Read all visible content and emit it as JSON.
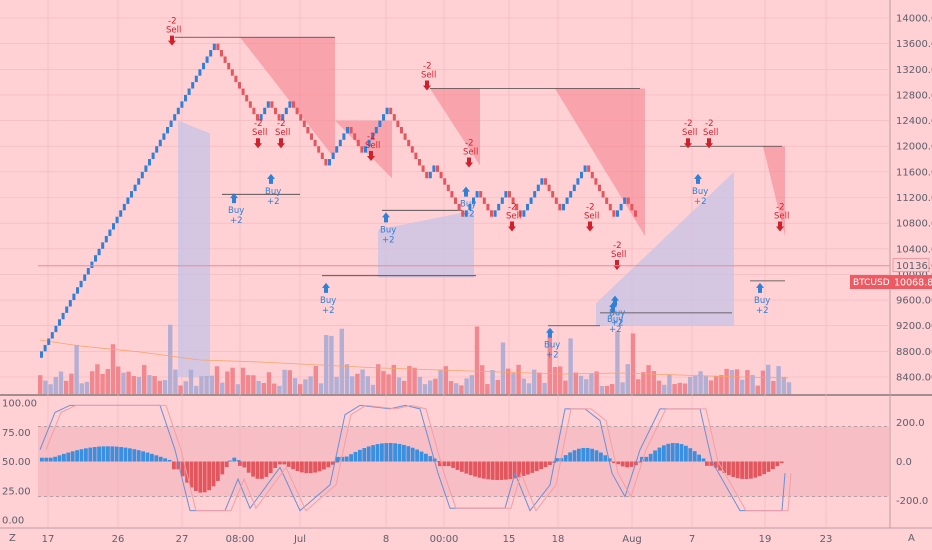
{
  "chart_data": [
    {
      "type": "renko",
      "symbol_label": "BTCUSD",
      "last_price": "10068.8",
      "ref_price": "10136.0",
      "ylim": [
        8100,
        14200
      ],
      "y_ticks": [
        14000,
        13600,
        13200,
        12800,
        12400,
        12000,
        11600,
        11200,
        10800,
        10400,
        10000,
        9600,
        9200,
        8800,
        8400
      ],
      "x_ticks": [
        "17",
        "26",
        "27",
        "08:00",
        "Jul",
        "8",
        "00:00",
        "15",
        "18",
        "Aug",
        "7",
        "19",
        "23"
      ],
      "brick_size": 100,
      "start_price": 8700,
      "brick_moves": [
        49,
        -12,
        3,
        -3,
        3,
        -3,
        0,
        -7,
        6,
        -4,
        7,
        -5,
        -6,
        2,
        -5,
        -3,
        4,
        -4,
        4,
        -4,
        0,
        4,
        2,
        -5,
        7,
        0,
        -3,
        0,
        -5,
        3,
        -3
      ],
      "colors": {
        "up": "#2f80d6",
        "down": "#e4565d",
        "drawdown_fill": "#f47f8a",
        "runup_fill": "#c7c3e6"
      },
      "signals": [
        {
          "side": "sell",
          "label": "Sell",
          "qty": "-2",
          "price": 13600
        },
        {
          "side": "buy",
          "label": "Buy",
          "qty": "+2",
          "price": 11300
        },
        {
          "side": "sell",
          "label": "Sell",
          "qty": "-2",
          "price": 12000
        },
        {
          "side": "buy",
          "label": "Buy",
          "qty": "+2",
          "price": 11600
        },
        {
          "side": "sell",
          "label": "Sell",
          "qty": "-2",
          "price": 12000
        },
        {
          "side": "buy",
          "label": "Buy",
          "qty": "+2",
          "price": 9900
        },
        {
          "side": "sell",
          "label": "Sell",
          "qty": "-2",
          "price": 11800
        },
        {
          "side": "buy",
          "label": "Buy",
          "qty": "+2",
          "price": 11000
        },
        {
          "side": "sell",
          "label": "Sell",
          "qty": "-2",
          "price": 12900
        },
        {
          "side": "sell",
          "label": "Sell",
          "qty": "-2",
          "price": 11700
        },
        {
          "side": "buy",
          "label": "Buy",
          "qty": "+2",
          "price": 11400
        },
        {
          "side": "sell",
          "label": "Sell",
          "qty": "-2",
          "price": 10700
        },
        {
          "side": "buy",
          "label": "Buy",
          "qty": "+2",
          "price": 9200
        },
        {
          "side": "sell",
          "label": "Sell",
          "qty": "-2",
          "price": 10700
        },
        {
          "side": "buy",
          "label": "Buy",
          "qty": "+2",
          "price": 9600
        },
        {
          "side": "sell",
          "label": "Sell",
          "qty": "-2",
          "price": 10100
        },
        {
          "side": "buy",
          "label": "Buy",
          "qty": "+2",
          "price": 9700
        },
        {
          "side": "sell",
          "label": "Sell",
          "qty": "-2",
          "price": 12000
        },
        {
          "side": "buy",
          "label": "Buy",
          "qty": "+2",
          "price": 11600
        },
        {
          "side": "sell",
          "label": "Sell",
          "qty": "-2",
          "price": 12000
        },
        {
          "side": "buy",
          "label": "Buy",
          "qty": "+2",
          "price": 9900
        },
        {
          "side": "sell",
          "label": "Sell",
          "qty": "-2",
          "price": 10700
        }
      ]
    },
    {
      "type": "oscillator",
      "left_ticks": [
        "100.00",
        "75.00",
        "50.00",
        "25.00",
        "0.00"
      ],
      "right_ticks": [
        "200.0",
        "0.0",
        "-200.0"
      ],
      "left_range": [
        0,
        100
      ],
      "right_range": [
        -300,
        300
      ],
      "band_levels": [
        80,
        20
      ],
      "colors": {
        "pos": "#3b8fe0",
        "neg": "#e4565d",
        "line_a": "#6b8fd6",
        "line_b": "#f0a0a8"
      }
    }
  ],
  "ui": {
    "axis_left_label": "Z",
    "axis_right_label": "A"
  }
}
